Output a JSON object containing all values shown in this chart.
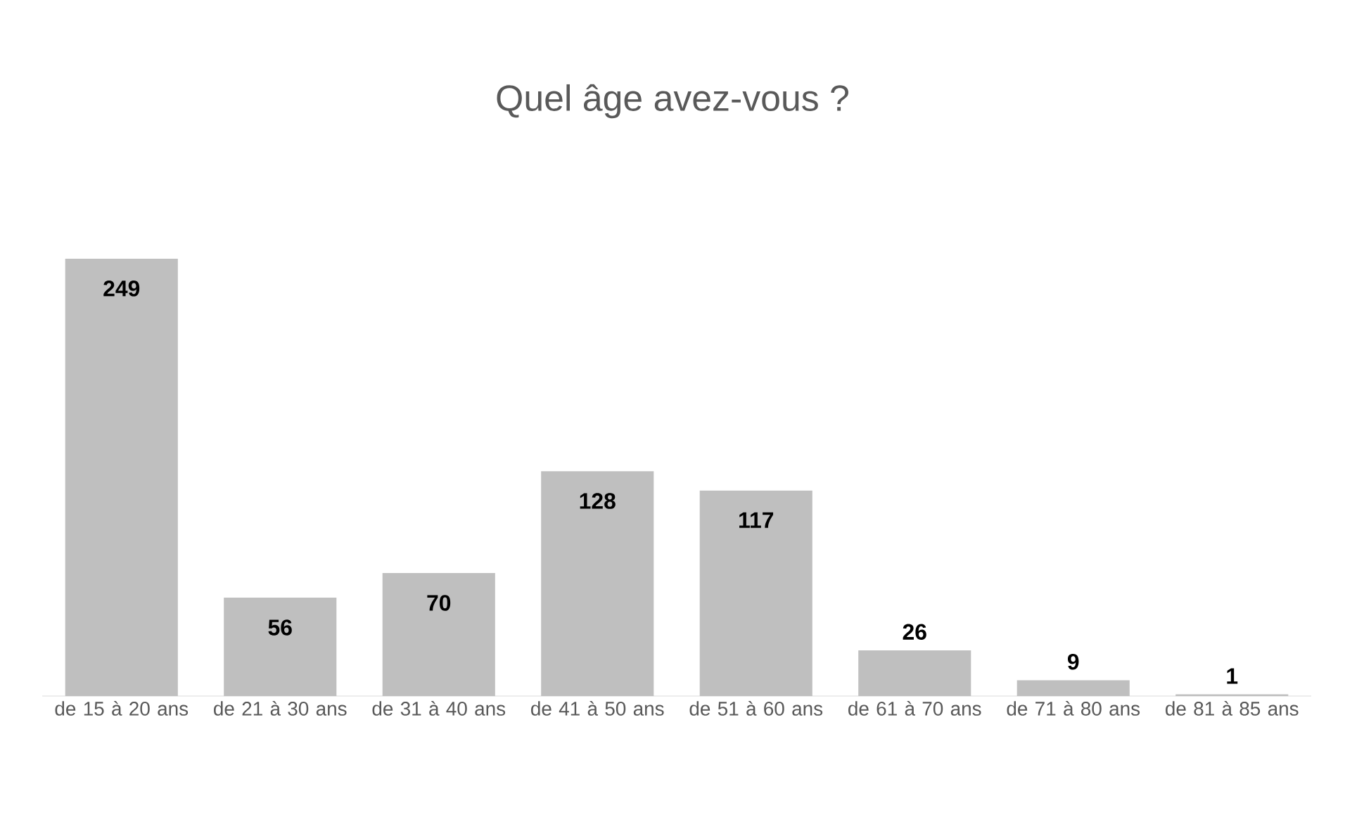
{
  "chart_data": {
    "type": "bar",
    "title": "Quel âge avez-vous ?",
    "categories": [
      "de 15 à 20 ans",
      "de 21 à 30 ans",
      "de 31 à 40 ans",
      "de 41 à 50 ans",
      "de 51 à 60 ans",
      "de 61 à 70 ans",
      "de 71 à 80 ans",
      "de 81 à 85 ans"
    ],
    "values": [
      249,
      56,
      70,
      128,
      117,
      26,
      9,
      1
    ],
    "color": "#bfbfbf",
    "data_labels": true
  }
}
